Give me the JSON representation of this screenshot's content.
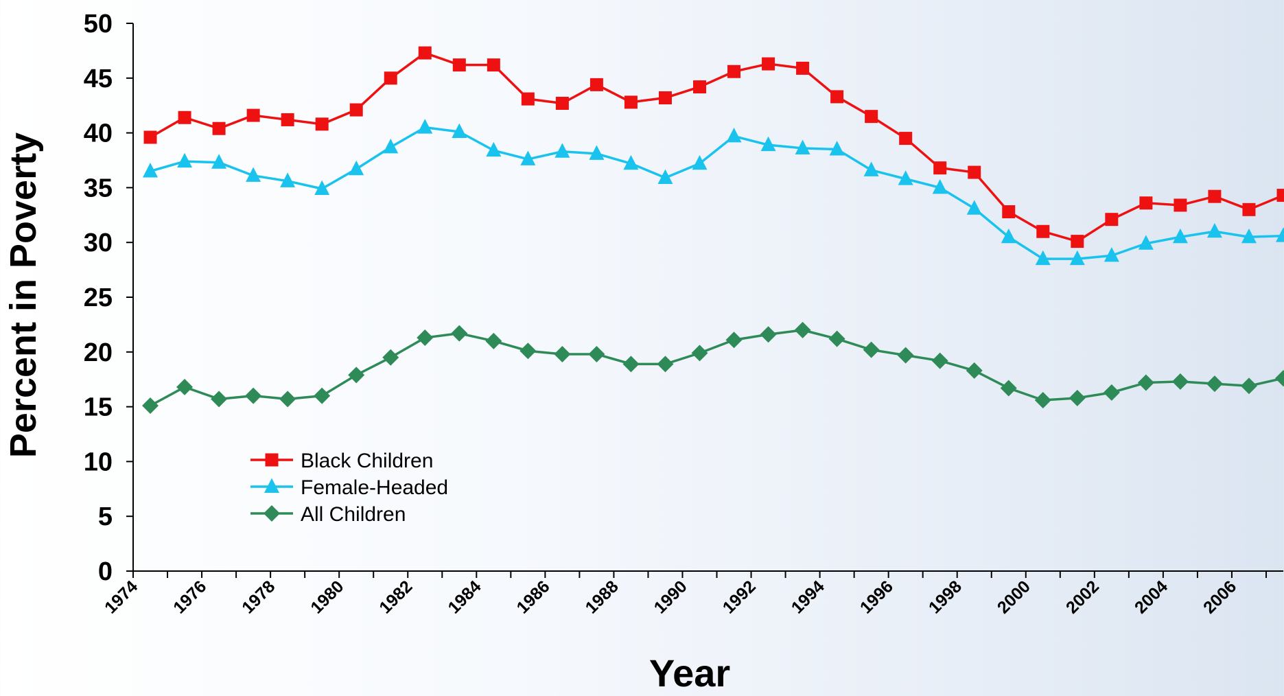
{
  "chart_data": {
    "type": "line",
    "title": "",
    "xlabel": "Year",
    "ylabel": "Percent in Poverty",
    "ylim": [
      0,
      50
    ],
    "yticks": [
      "0",
      "5",
      "10",
      "15",
      "20",
      "25",
      "30",
      "35",
      "40",
      "45",
      "50"
    ],
    "xlim": [
      1974,
      2007.5
    ],
    "xtick_labels": [
      "1974",
      "1976",
      "1978",
      "1980",
      "1982",
      "1984",
      "1986",
      "1988",
      "1990",
      "1992",
      "1994",
      "1996",
      "1998",
      "2000",
      "2002",
      "2004",
      "2006"
    ],
    "x": [
      1974.5,
      1975.5,
      1976.5,
      1977.5,
      1978.5,
      1979.5,
      1980.5,
      1981.5,
      1982.5,
      1983.5,
      1984.5,
      1985.5,
      1986.5,
      1987.5,
      1988.5,
      1989.5,
      1990.5,
      1991.5,
      1992.5,
      1993.5,
      1994.5,
      1995.5,
      1996.5,
      1997.5,
      1998.5,
      1999.5,
      2000.5,
      2001.5,
      2002.5,
      2003.5,
      2004.5,
      2005.5,
      2006.5,
      2007.5
    ],
    "legend_position": "lower-left",
    "grid": false,
    "series": [
      {
        "name": "Black Children",
        "color": "#ee1111",
        "marker": "square",
        "values": [
          39.6,
          41.4,
          40.4,
          41.6,
          41.2,
          40.8,
          42.1,
          45.0,
          47.3,
          46.2,
          46.2,
          43.1,
          42.7,
          44.4,
          42.8,
          43.2,
          44.2,
          45.6,
          46.3,
          45.9,
          43.3,
          41.5,
          39.5,
          36.8,
          36.4,
          32.8,
          31.0,
          30.1,
          32.1,
          33.6,
          33.4,
          34.2,
          33.0,
          34.3
        ]
      },
      {
        "name": "Female-Headed",
        "color": "#19c3ee",
        "marker": "triangle",
        "values": [
          36.5,
          37.4,
          37.3,
          36.1,
          35.6,
          34.9,
          36.7,
          38.7,
          40.5,
          40.1,
          38.4,
          37.6,
          38.3,
          38.1,
          37.2,
          35.9,
          37.2,
          39.7,
          38.9,
          38.6,
          38.5,
          36.6,
          35.8,
          35.0,
          33.1,
          30.5,
          28.5,
          28.5,
          28.8,
          29.9,
          30.5,
          31.0,
          30.5,
          30.6
        ]
      },
      {
        "name": "All Children",
        "color": "#2e8b57",
        "marker": "diamond",
        "values": [
          15.1,
          16.8,
          15.7,
          16.0,
          15.7,
          16.0,
          17.9,
          19.5,
          21.3,
          21.7,
          21.0,
          20.1,
          19.8,
          19.8,
          18.9,
          18.9,
          19.9,
          21.1,
          21.6,
          22.0,
          21.2,
          20.2,
          19.7,
          19.2,
          18.3,
          16.7,
          15.6,
          15.8,
          16.3,
          17.2,
          17.3,
          17.1,
          16.9,
          17.6
        ]
      }
    ]
  }
}
